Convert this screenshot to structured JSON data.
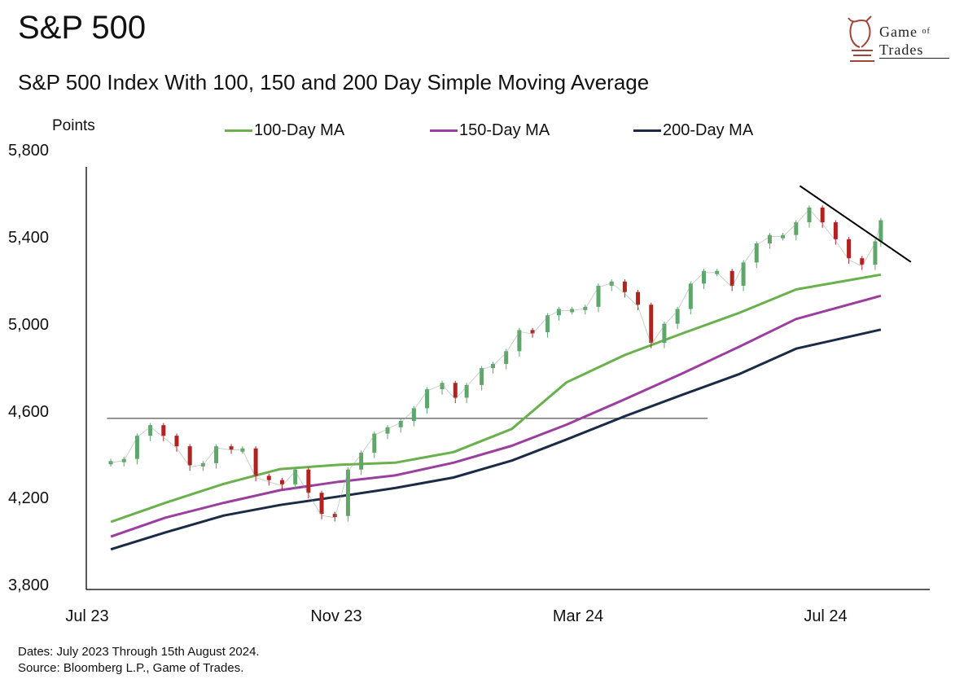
{
  "header": {
    "title": "S&P 500",
    "subtitle": "S&P 500 Index  With 100, 150 and 200 Day Simple Moving Average"
  },
  "logo": {
    "line1": "Game",
    "of": "of",
    "line2": "Trades"
  },
  "colors": {
    "ma100": "#6ab04c",
    "ma150": "#9b3f9e",
    "ma200": "#1c2b45",
    "up": "#5fa66b",
    "down": "#b22222",
    "support": "#666666",
    "trendline": "#000000"
  },
  "chart_data": {
    "type": "line",
    "title": "S&P 500 Index  With 100, 150 and 200 Day Simple Moving Average",
    "ylabel": "Points",
    "ylim": [
      3800,
      5800
    ],
    "yticks": [
      "5,800",
      "5,400",
      "5,000",
      "4,600",
      "4,200",
      "3,800"
    ],
    "ytick_values": [
      5800,
      5400,
      5000,
      4600,
      4200,
      3800
    ],
    "xticks": [
      "Jul 23",
      "Nov 23",
      "Mar 24",
      "Jul 24"
    ],
    "xtick_dates": [
      "2023-07-01",
      "2023-11-01",
      "2024-03-01",
      "2024-07-01"
    ],
    "legend": [
      "100-Day MA",
      "150-Day MA",
      "200-Day MA"
    ],
    "legend_position": "top",
    "grid": false,
    "price": {
      "name": "S&P 500",
      "dates": [
        "2023-07-03",
        "2023-07-10",
        "2023-07-17",
        "2023-07-24",
        "2023-07-31",
        "2023-08-07",
        "2023-08-14",
        "2023-08-21",
        "2023-08-28",
        "2023-09-05",
        "2023-09-11",
        "2023-09-18",
        "2023-09-25",
        "2023-10-02",
        "2023-10-09",
        "2023-10-16",
        "2023-10-23",
        "2023-10-30",
        "2023-11-06",
        "2023-11-13",
        "2023-11-20",
        "2023-11-27",
        "2023-12-04",
        "2023-12-11",
        "2023-12-18",
        "2023-12-26",
        "2024-01-02",
        "2024-01-08",
        "2024-01-16",
        "2024-01-22",
        "2024-01-29",
        "2024-02-05",
        "2024-02-12",
        "2024-02-20",
        "2024-02-26",
        "2024-03-04",
        "2024-03-11",
        "2024-03-18",
        "2024-03-25",
        "2024-04-01",
        "2024-04-08",
        "2024-04-15",
        "2024-04-22",
        "2024-04-29",
        "2024-05-06",
        "2024-05-13",
        "2024-05-20",
        "2024-05-28",
        "2024-06-03",
        "2024-06-10",
        "2024-06-17",
        "2024-06-24",
        "2024-07-01",
        "2024-07-08",
        "2024-07-15",
        "2024-07-22",
        "2024-07-29",
        "2024-08-05",
        "2024-08-12",
        "2024-08-15"
      ],
      "values": [
        4400,
        4410,
        4520,
        4570,
        4520,
        4470,
        4380,
        4390,
        4470,
        4460,
        4460,
        4330,
        4310,
        4290,
        4360,
        4250,
        4150,
        4140,
        4360,
        4440,
        4530,
        4560,
        4590,
        4650,
        4740,
        4770,
        4700,
        4760,
        4840,
        4860,
        4920,
        5020,
        5010,
        5090,
        5120,
        5120,
        5130,
        5230,
        5250,
        5200,
        5140,
        4960,
        5050,
        5120,
        5240,
        5300,
        5300,
        5230,
        5340,
        5430,
        5470,
        5470,
        5530,
        5600,
        5530,
        5450,
        5360,
        5330,
        5440,
        5540
      ]
    },
    "series": [
      {
        "name": "100-Day MA",
        "dates": [
          "2023-07-03",
          "2023-08-01",
          "2023-09-01",
          "2023-10-01",
          "2023-11-01",
          "2023-12-01",
          "2024-01-01",
          "2024-02-01",
          "2024-03-01",
          "2024-04-01",
          "2024-05-01",
          "2024-06-01",
          "2024-07-01",
          "2024-08-15"
        ],
        "values": [
          4120,
          4210,
          4300,
          4370,
          4390,
          4400,
          4450,
          4560,
          4780,
          4910,
          5010,
          5110,
          5220,
          5290
        ]
      },
      {
        "name": "150-Day MA",
        "dates": [
          "2023-07-03",
          "2023-08-01",
          "2023-09-01",
          "2023-10-01",
          "2023-11-01",
          "2023-12-01",
          "2024-01-01",
          "2024-02-01",
          "2024-03-01",
          "2024-04-01",
          "2024-05-01",
          "2024-06-01",
          "2024-07-01",
          "2024-08-15"
        ],
        "values": [
          4050,
          4140,
          4210,
          4270,
          4310,
          4340,
          4400,
          4480,
          4580,
          4700,
          4820,
          4950,
          5080,
          5190
        ]
      },
      {
        "name": "200-Day MA",
        "dates": [
          "2023-07-03",
          "2023-08-01",
          "2023-09-01",
          "2023-10-01",
          "2023-11-01",
          "2023-12-01",
          "2024-01-01",
          "2024-02-01",
          "2024-03-01",
          "2024-04-01",
          "2024-05-01",
          "2024-06-01",
          "2024-07-01",
          "2024-08-15"
        ],
        "values": [
          3990,
          4070,
          4150,
          4200,
          4240,
          4280,
          4330,
          4410,
          4510,
          4620,
          4720,
          4820,
          4940,
          5030
        ]
      }
    ],
    "annotations": [
      {
        "type": "horizontal_line",
        "value": 4610,
        "from": "2023-07-01",
        "to": "2024-05-15"
      },
      {
        "type": "trendline",
        "from": {
          "date": "2024-07-03",
          "value": 5710
        },
        "to": {
          "date": "2024-08-31",
          "value": 5350
        }
      }
    ]
  },
  "footer": {
    "dates": "Dates: July 2023 Through 15th August 2024.",
    "source": "Source: Bloomberg L.P., Game of Trades."
  }
}
